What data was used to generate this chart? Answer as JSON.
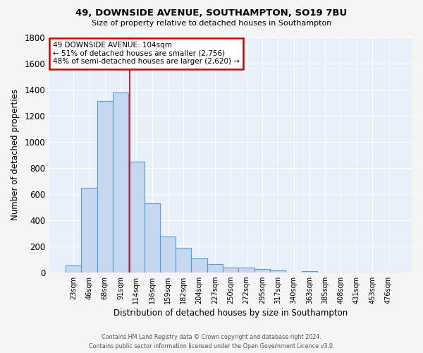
{
  "title": "49, DOWNSIDE AVENUE, SOUTHAMPTON, SO19 7BU",
  "subtitle": "Size of property relative to detached houses in Southampton",
  "xlabel": "Distribution of detached houses by size in Southampton",
  "ylabel": "Number of detached properties",
  "footer_line1": "Contains HM Land Registry data © Crown copyright and database right 2024.",
  "footer_line2": "Contains public sector information licensed under the Open Government Licence v3.0.",
  "categories": [
    "23sqm",
    "46sqm",
    "68sqm",
    "91sqm",
    "114sqm",
    "136sqm",
    "159sqm",
    "182sqm",
    "204sqm",
    "227sqm",
    "250sqm",
    "272sqm",
    "295sqm",
    "317sqm",
    "340sqm",
    "363sqm",
    "385sqm",
    "408sqm",
    "431sqm",
    "453sqm",
    "476sqm"
  ],
  "values": [
    55,
    645,
    1310,
    1375,
    845,
    530,
    275,
    185,
    105,
    65,
    35,
    35,
    25,
    12,
    0,
    10,
    0,
    0,
    0,
    0,
    0
  ],
  "bar_color": "#c5d8f0",
  "bar_edge_color": "#5b9bd5",
  "background_color": "#e8f0fa",
  "grid_color": "#ffffff",
  "annotation_text": "49 DOWNSIDE AVENUE: 104sqm\n← 51% of detached houses are smaller (2,756)\n48% of semi-detached houses are larger (2,620) →",
  "annotation_box_color": "#ffffff",
  "annotation_box_edge_color": "#cc0000",
  "vline_color": "#cc0000",
  "ylim": [
    0,
    1800
  ],
  "yticks": [
    0,
    200,
    400,
    600,
    800,
    1000,
    1200,
    1400,
    1600,
    1800
  ]
}
